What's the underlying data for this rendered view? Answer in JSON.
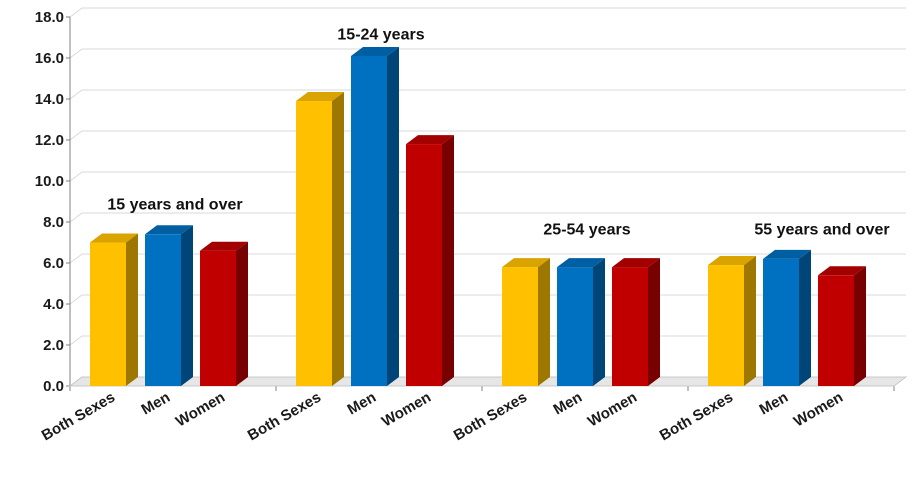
{
  "chart_data": {
    "type": "bar",
    "title": "",
    "xlabel": "",
    "ylabel": "",
    "ylim": [
      0,
      18
    ],
    "yticks": [
      "0.0",
      "2.0",
      "4.0",
      "6.0",
      "8.0",
      "10.0",
      "12.0",
      "14.0",
      "16.0",
      "18.0"
    ],
    "grid": true,
    "style": "3d-columns",
    "categories": [
      "Both Sexes",
      "Men",
      "Women"
    ],
    "groups": [
      {
        "label": "15 years and over",
        "values": [
          7.0,
          7.4,
          6.6
        ]
      },
      {
        "label": "15-24 years",
        "values": [
          13.9,
          16.1,
          11.8
        ]
      },
      {
        "label": "25-54 years",
        "values": [
          5.8,
          5.8,
          5.8
        ]
      },
      {
        "label": "55 years and over",
        "values": [
          5.9,
          6.2,
          5.4
        ]
      }
    ],
    "colors": {
      "Both Sexes": "#ffc000",
      "Men": "#0070c0",
      "Women": "#c00000"
    }
  }
}
